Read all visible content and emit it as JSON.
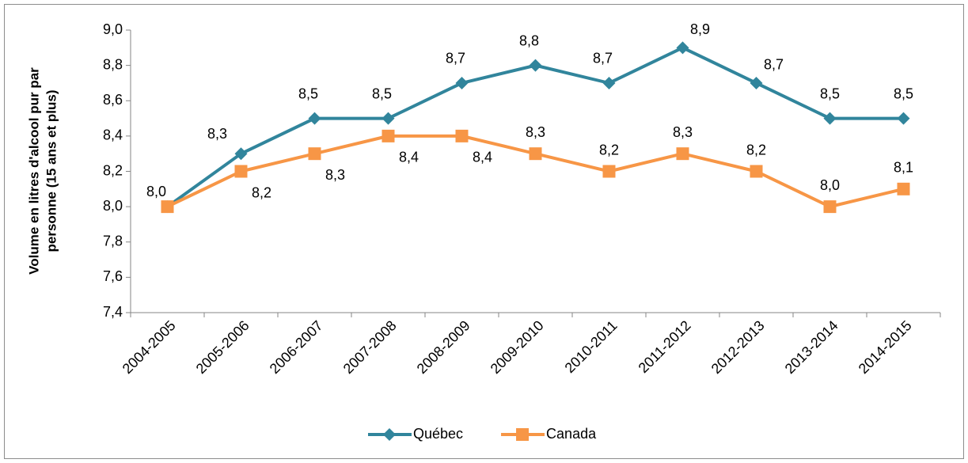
{
  "chart_data": {
    "type": "line",
    "y_label": [
      "Volume en litres d'alcool pur par",
      "personne (15 ans et plus)"
    ],
    "categories": [
      "2004-2005",
      "2005-2006",
      "2006-2007",
      "2007-2008",
      "2008-2009",
      "2009-2010",
      "2010-2011",
      "2011-2012",
      "2012-2013",
      "2013-2014",
      "2014-2015"
    ],
    "series": [
      {
        "name": "Québec",
        "color": "#31859c",
        "marker": "diamond",
        "values": [
          8.0,
          8.3,
          8.5,
          8.5,
          8.7,
          8.8,
          8.7,
          8.9,
          8.7,
          8.5,
          8.5
        ],
        "value_labels": [
          "8,0",
          "8,3",
          "8,5",
          "8,5",
          "8,7",
          "8,8",
          "8,7",
          "8,9",
          "8,7",
          "8,5",
          "8,5"
        ]
      },
      {
        "name": "Canada",
        "color": "#f79646",
        "marker": "square",
        "values": [
          8.0,
          8.2,
          8.3,
          8.4,
          8.4,
          8.3,
          8.2,
          8.3,
          8.2,
          8.0,
          8.1
        ],
        "value_labels": [
          "8,0",
          "8,2",
          "8,3",
          "8,4",
          "8,4",
          "8,3",
          "8,2",
          "8,3",
          "8,2",
          "8,0",
          "8,1"
        ]
      }
    ],
    "ylim": [
      7.4,
      9.0
    ],
    "yticks": [
      {
        "value": 7.4,
        "label": "7,4"
      },
      {
        "value": 7.6,
        "label": "7,6"
      },
      {
        "value": 7.8,
        "label": "7,8"
      },
      {
        "value": 8.0,
        "label": "8,0"
      },
      {
        "value": 8.2,
        "label": "8,2"
      },
      {
        "value": 8.4,
        "label": "8,4"
      },
      {
        "value": 8.6,
        "label": "8,6"
      },
      {
        "value": 8.8,
        "label": "8,8"
      },
      {
        "value": 9.0,
        "label": "9,0"
      }
    ],
    "grid": false,
    "legend": "bottom"
  }
}
